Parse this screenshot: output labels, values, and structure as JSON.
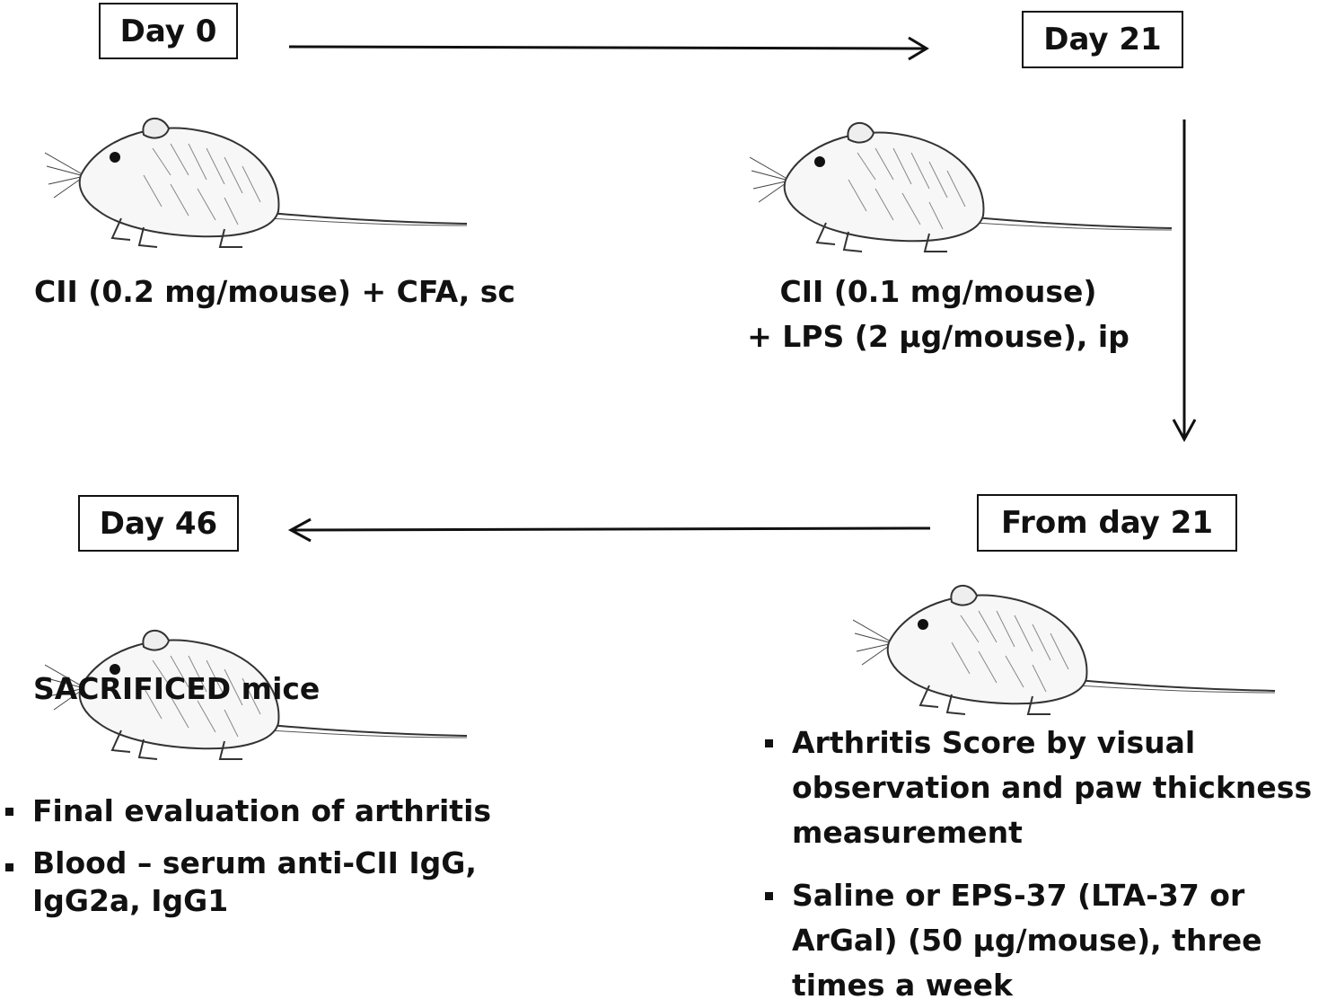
{
  "steps": {
    "day0": {
      "label": "Day 0",
      "treatment": "CII (0.2 mg/mouse) + CFA, sc"
    },
    "day21": {
      "label": "Day 21",
      "treatment_line1": "CII (0.1 mg/mouse)",
      "treatment_line2": "+ LPS (2 μg/mouse), ip"
    },
    "from_day21": {
      "label": "From day 21",
      "bullets": [
        "Arthritis Score by visual observation and paw thickness measurement",
        "Saline or EPS-37 (LTA-37 or ArGal) (50 μg/mouse), three times a week"
      ]
    },
    "day46": {
      "label": "Day 46",
      "overlay": "SACRIFICED mice",
      "bullets": [
        "Final evaluation of arthritis",
        "Blood – serum anti-CII IgG, IgG2a, IgG1"
      ]
    }
  },
  "illustration": "mouse-sketch"
}
